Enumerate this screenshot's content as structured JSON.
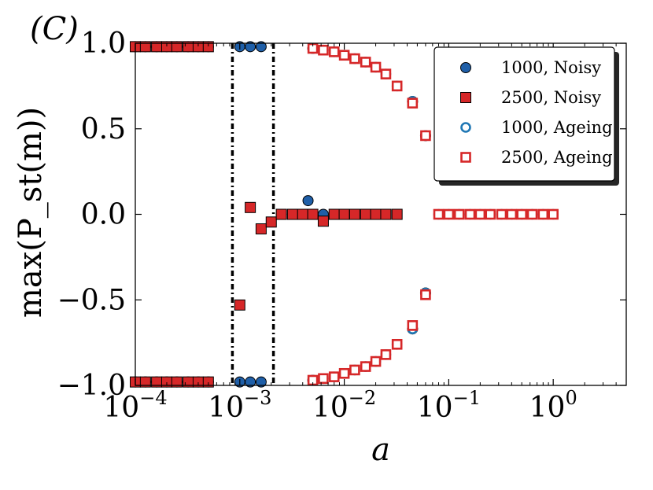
{
  "chart_data": {
    "type": "scatter",
    "panel_label": "(C)",
    "xlabel": "a",
    "ylabel": "max(P_st(m))",
    "xscale": "log",
    "xlim": [
      0.0001,
      5.0
    ],
    "ylim": [
      -1.0,
      1.0
    ],
    "xticks": [
      {
        "value": 0.0001,
        "base": "10",
        "exp": "−4"
      },
      {
        "value": 0.001,
        "base": "10",
        "exp": "−3"
      },
      {
        "value": 0.01,
        "base": "10",
        "exp": "−2"
      },
      {
        "value": 0.1,
        "base": "10",
        "exp": "−1"
      },
      {
        "value": 1.0,
        "base": "10",
        "exp": "0"
      }
    ],
    "yticks": [
      {
        "value": 1.0,
        "label": "1.0"
      },
      {
        "value": 0.5,
        "label": "0.5"
      },
      {
        "value": 0.0,
        "label": "0.0"
      },
      {
        "value": -0.5,
        "label": "−0.5"
      },
      {
        "value": -1.0,
        "label": "−1.0"
      }
    ],
    "vlines": [
      0.00085,
      0.0021
    ],
    "legend_position": "top-right",
    "series": [
      {
        "name": "1000, Noisy",
        "marker": "circle",
        "fill": "#1f5fa8",
        "edge": "#000000",
        "points": [
          [
            0.0001,
            0.98
          ],
          [
            0.000125,
            0.98
          ],
          [
            0.00016,
            0.98
          ],
          [
            0.0002,
            0.98
          ],
          [
            0.00025,
            0.98
          ],
          [
            0.00032,
            0.98
          ],
          [
            0.0004,
            0.98
          ],
          [
            0.0005,
            0.98
          ],
          [
            0.0001,
            -0.98
          ],
          [
            0.000125,
            -0.98
          ],
          [
            0.00016,
            -0.98
          ],
          [
            0.0002,
            -0.98
          ],
          [
            0.00025,
            -0.98
          ],
          [
            0.00032,
            -0.98
          ],
          [
            0.0004,
            -0.98
          ],
          [
            0.0005,
            -0.98
          ],
          [
            0.001,
            0.98
          ],
          [
            0.00126,
            0.98
          ],
          [
            0.0016,
            0.98
          ],
          [
            0.001,
            -0.98
          ],
          [
            0.00126,
            -0.98
          ],
          [
            0.0016,
            -0.98
          ],
          [
            0.0025,
            0.0
          ],
          [
            0.0045,
            0.08
          ],
          [
            0.0063,
            0.0
          ],
          [
            0.005,
            0.97
          ],
          [
            0.005,
            -0.97
          ],
          [
            0.045,
            0.66
          ],
          [
            0.045,
            -0.67
          ],
          [
            0.06,
            0.46
          ],
          [
            0.06,
            -0.46
          ]
        ]
      },
      {
        "name": "2500, Noisy",
        "marker": "square",
        "fill": "#d62728",
        "edge": "#000000",
        "points": [
          [
            0.0001,
            0.98
          ],
          [
            0.000125,
            0.98
          ],
          [
            0.00016,
            0.98
          ],
          [
            0.0002,
            0.98
          ],
          [
            0.00025,
            0.98
          ],
          [
            0.00032,
            0.98
          ],
          [
            0.0004,
            0.98
          ],
          [
            0.0005,
            0.98
          ],
          [
            0.0001,
            -0.98
          ],
          [
            0.000125,
            -0.98
          ],
          [
            0.00016,
            -0.98
          ],
          [
            0.0002,
            -0.98
          ],
          [
            0.00025,
            -0.98
          ],
          [
            0.00032,
            -0.98
          ],
          [
            0.0004,
            -0.98
          ],
          [
            0.0005,
            -0.98
          ],
          [
            0.001,
            -0.53
          ],
          [
            0.00126,
            0.04
          ],
          [
            0.0016,
            -0.085
          ],
          [
            0.002,
            -0.045
          ],
          [
            0.0025,
            0.0
          ],
          [
            0.0032,
            0.0
          ],
          [
            0.004,
            0.0
          ],
          [
            0.005,
            0.0
          ],
          [
            0.0063,
            -0.04
          ],
          [
            0.008,
            0.0
          ],
          [
            0.01,
            0.0
          ],
          [
            0.0126,
            0.0
          ],
          [
            0.016,
            0.0
          ],
          [
            0.02,
            0.0
          ],
          [
            0.025,
            0.0
          ],
          [
            0.032,
            0.0
          ]
        ]
      },
      {
        "name": "1000, Ageing",
        "marker": "circle-open",
        "fill": "#ffffff",
        "edge": "#1f77b4",
        "points": [
          [
            0.005,
            0.97
          ],
          [
            0.0063,
            0.96
          ],
          [
            0.008,
            0.95
          ],
          [
            0.01,
            0.93
          ],
          [
            0.0126,
            0.91
          ],
          [
            0.016,
            0.89
          ],
          [
            0.02,
            0.86
          ],
          [
            0.025,
            0.82
          ],
          [
            0.032,
            0.75
          ],
          [
            0.045,
            0.66
          ],
          [
            0.06,
            0.46
          ],
          [
            0.005,
            -0.97
          ],
          [
            0.0063,
            -0.96
          ],
          [
            0.008,
            -0.95
          ],
          [
            0.01,
            -0.93
          ],
          [
            0.0126,
            -0.91
          ],
          [
            0.016,
            -0.89
          ],
          [
            0.02,
            -0.86
          ],
          [
            0.025,
            -0.82
          ],
          [
            0.032,
            -0.76
          ],
          [
            0.045,
            -0.67
          ],
          [
            0.06,
            -0.46
          ],
          [
            0.08,
            0.0
          ],
          [
            0.1,
            0.0
          ],
          [
            0.126,
            0.0
          ],
          [
            0.16,
            0.0
          ],
          [
            0.2,
            0.0
          ],
          [
            0.25,
            0.0
          ],
          [
            0.32,
            0.0
          ],
          [
            0.4,
            0.0
          ],
          [
            0.5,
            0.0
          ],
          [
            0.63,
            0.0
          ],
          [
            0.8,
            0.0
          ],
          [
            1.0,
            0.0
          ]
        ]
      },
      {
        "name": "2500, Ageing",
        "marker": "square-open",
        "fill": "#ffffff",
        "edge": "#d62728",
        "points": [
          [
            0.005,
            0.97
          ],
          [
            0.0063,
            0.96
          ],
          [
            0.008,
            0.95
          ],
          [
            0.01,
            0.93
          ],
          [
            0.0126,
            0.91
          ],
          [
            0.016,
            0.89
          ],
          [
            0.02,
            0.86
          ],
          [
            0.025,
            0.82
          ],
          [
            0.032,
            0.75
          ],
          [
            0.045,
            0.65
          ],
          [
            0.06,
            0.46
          ],
          [
            0.005,
            -0.97
          ],
          [
            0.0063,
            -0.96
          ],
          [
            0.008,
            -0.95
          ],
          [
            0.01,
            -0.93
          ],
          [
            0.0126,
            -0.91
          ],
          [
            0.016,
            -0.89
          ],
          [
            0.02,
            -0.86
          ],
          [
            0.025,
            -0.82
          ],
          [
            0.032,
            -0.76
          ],
          [
            0.045,
            -0.65
          ],
          [
            0.06,
            -0.47
          ],
          [
            0.08,
            0.0
          ],
          [
            0.1,
            0.0
          ],
          [
            0.126,
            0.0
          ],
          [
            0.16,
            0.0
          ],
          [
            0.2,
            0.0
          ],
          [
            0.25,
            0.0
          ],
          [
            0.32,
            0.0
          ],
          [
            0.4,
            0.0
          ],
          [
            0.5,
            0.0
          ],
          [
            0.63,
            0.0
          ],
          [
            0.8,
            0.0
          ],
          [
            1.0,
            0.0
          ]
        ]
      }
    ]
  }
}
